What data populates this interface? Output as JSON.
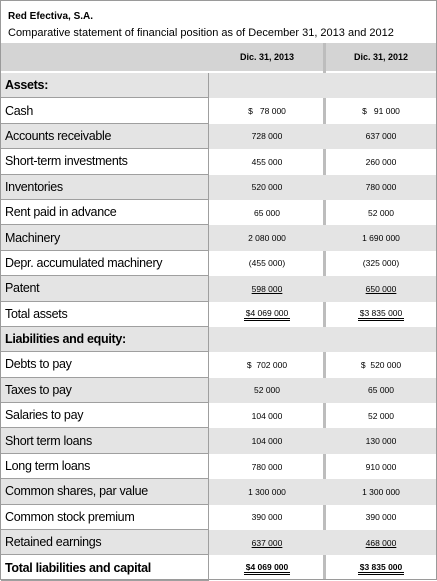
{
  "header": {
    "company": "Red Efectiva, S.A.",
    "subtitle": "Comparative statement of financial position as of December 31, 2013 and 2012",
    "col_2013": "Dic. 31, 2013",
    "col_2012": "Dic. 31, 2012"
  },
  "rows": [
    {
      "label": "Assets:",
      "v2013": "",
      "v2012": "",
      "kind": "section",
      "shade": true
    },
    {
      "label": "Cash",
      "v2013": "$   78 000",
      "v2012": "$   91 000",
      "kind": "item",
      "shade": false
    },
    {
      "label": "Accounts receivable",
      "v2013": "728 000",
      "v2012": "637 000",
      "kind": "item",
      "shade": true
    },
    {
      "label": "Short-term investments",
      "v2013": "455 000",
      "v2012": "260 000",
      "kind": "item",
      "shade": false
    },
    {
      "label": "Inventories",
      "v2013": "520 000",
      "v2012": "780 000",
      "kind": "item",
      "shade": true
    },
    {
      "label": "Rent paid in advance",
      "v2013": "65 000",
      "v2012": "52 000",
      "kind": "item",
      "shade": false
    },
    {
      "label": "Machinery",
      "v2013": "2 080 000",
      "v2012": "1 690 000",
      "kind": "item",
      "shade": true
    },
    {
      "label": "Depr. accumulated machinery",
      "v2013": "(455 000)",
      "v2012": "(325 000)",
      "kind": "item",
      "shade": false
    },
    {
      "label": "Patent",
      "v2013": "598 000",
      "v2012": "650 000",
      "kind": "item",
      "shade": true,
      "underline": "single"
    },
    {
      "label": "Total assets",
      "v2013": "$4 069 000",
      "v2012": "$3 835 000",
      "kind": "item",
      "shade": false,
      "underline": "double"
    },
    {
      "label": "Liabilities and equity:",
      "v2013": "",
      "v2012": "",
      "kind": "section",
      "shade": true
    },
    {
      "label": "Debts to pay",
      "v2013": "$  702 000",
      "v2012": "$  520 000",
      "kind": "item",
      "shade": false
    },
    {
      "label": "Taxes to pay",
      "v2013": "52 000",
      "v2012": "65 000",
      "kind": "item",
      "shade": true
    },
    {
      "label": "Salaries to pay",
      "v2013": "104 000",
      "v2012": "52 000",
      "kind": "item",
      "shade": false
    },
    {
      "label": "Short term loans",
      "v2013": "104 000",
      "v2012": "130 000",
      "kind": "item",
      "shade": true
    },
    {
      "label": "Long term loans",
      "v2013": "780 000",
      "v2012": "910 000",
      "kind": "item",
      "shade": false
    },
    {
      "label": "Common shares, par value",
      "v2013": "1 300 000",
      "v2012": "1 300 000",
      "kind": "item",
      "shade": true
    },
    {
      "label": "Common stock premium",
      "v2013": "390 000",
      "v2012": "390 000",
      "kind": "item",
      "shade": false
    },
    {
      "label": "Retained earnings",
      "v2013": "637 000",
      "v2012": "468 000",
      "kind": "item",
      "shade": true,
      "underline": "single"
    },
    {
      "label": "Total liabilities and capital",
      "v2013": "$4 069 000",
      "v2012": "$3 835 000",
      "kind": "total",
      "shade": false,
      "underline": "double"
    }
  ]
}
